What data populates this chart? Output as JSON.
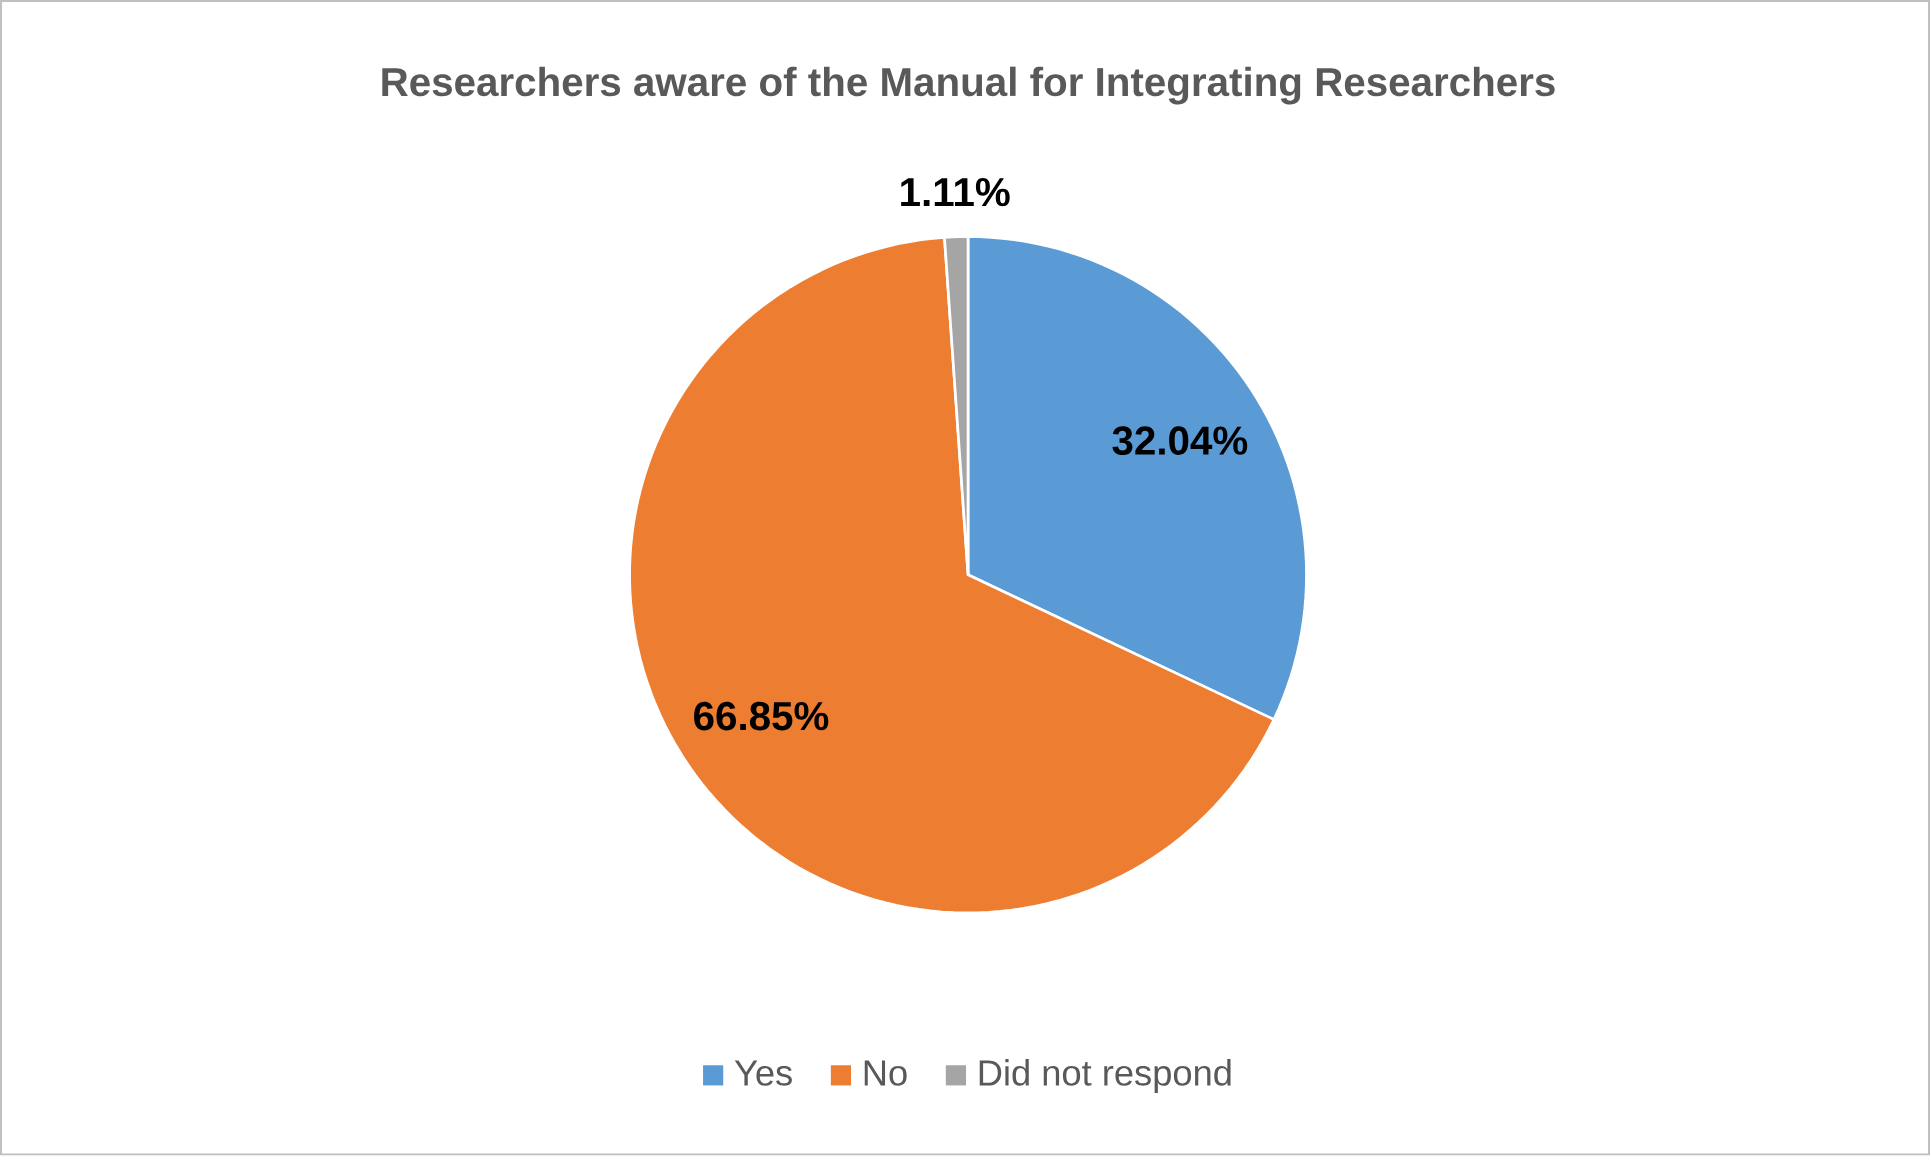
{
  "chart_data": {
    "type": "pie",
    "title": "Researchers aware of the Manual for Integrating Researchers",
    "categories": [
      "Yes",
      "No",
      "Did not respond"
    ],
    "values": [
      32.04,
      66.85,
      1.11
    ],
    "value_labels": [
      "32.04%",
      "66.85%",
      "1.11%"
    ],
    "colors": [
      "#5b9bd5",
      "#ed7d31",
      "#a5a5a5"
    ],
    "legend": "bottom"
  }
}
